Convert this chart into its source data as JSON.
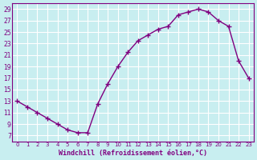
{
  "x": [
    0,
    1,
    2,
    3,
    4,
    5,
    6,
    7,
    8,
    9,
    10,
    11,
    12,
    13,
    14,
    15,
    16,
    17,
    18,
    19,
    20,
    21,
    22,
    23
  ],
  "y": [
    13,
    12,
    11,
    10,
    9,
    8,
    7.5,
    7.5,
    12.5,
    16,
    19,
    21.5,
    23.5,
    24.5,
    25.5,
    26,
    28,
    28.5,
    29,
    28.5,
    27,
    26,
    20,
    17
  ],
  "line_color": "#800080",
  "marker": "+",
  "bg_color": "#c8eef0",
  "grid_color": "#ffffff",
  "xlabel": "Windchill (Refroidissement éolien,°C)",
  "ylabel_ticks": [
    7,
    9,
    11,
    13,
    15,
    17,
    19,
    21,
    23,
    25,
    27,
    29
  ],
  "ylim": [
    6,
    30
  ],
  "xlim": [
    -0.5,
    23.5
  ],
  "xtick_labels": [
    "0",
    "1",
    "2",
    "3",
    "4",
    "5",
    "6",
    "7",
    "8",
    "9",
    "10",
    "11",
    "12",
    "13",
    "14",
    "15",
    "16",
    "17",
    "18",
    "19",
    "20",
    "21",
    "22",
    "23"
  ],
  "xlabel_color": "#800080",
  "tick_color": "#800080",
  "axis_bg": "#c8eef0"
}
